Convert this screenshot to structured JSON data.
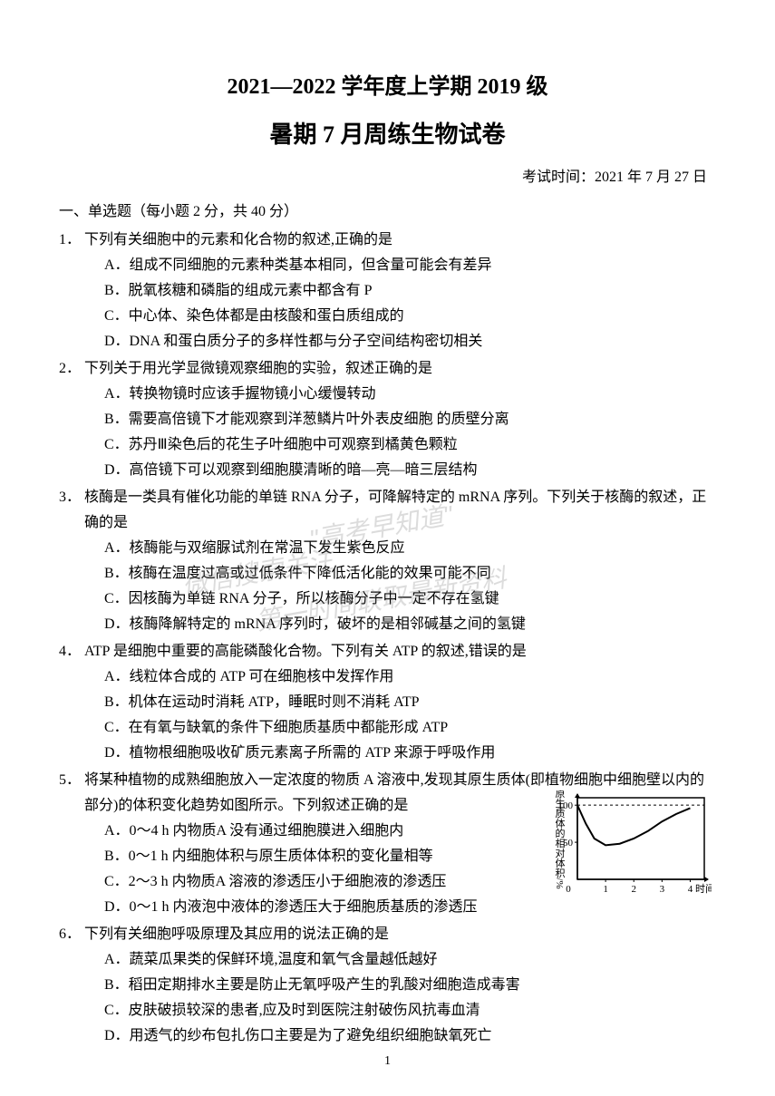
{
  "header": {
    "title_main": "2021—2022 学年度上学期 2019 级",
    "title_sub": "暑期 7 月周练生物试卷",
    "exam_date": "考试时间：2021 年 7 月 27 日"
  },
  "section1": {
    "header": "一、单选题（每小题 2 分，共 40 分）"
  },
  "questions": {
    "q1": {
      "num": "1．",
      "stem": "下列有关细胞中的元素和化合物的叙述,正确的是",
      "A": "A．组成不同细胞的元素种类基本相同，但含量可能会有差异",
      "B": "B．脱氧核糖和磷脂的组成元素中都含有 P",
      "C": "C．中心体、染色体都是由核酸和蛋白质组成的",
      "D": "D．DNA 和蛋白质分子的多样性都与分子空间结构密切相关"
    },
    "q2": {
      "num": "2．",
      "stem": "下列关于用光学显微镜观察细胞的实验，叙述正确的是",
      "A": "A．转换物镜时应该手握物镜小心缓慢转动",
      "B": "B．需要高倍镜下才能观察到洋葱鳞片叶外表皮细胞 的质壁分离",
      "C": "C．苏丹Ⅲ染色后的花生子叶细胞中可观察到橘黄色颗粒",
      "D": "D．高倍镜下可以观察到细胞膜清晰的暗—亮—暗三层结构"
    },
    "q3": {
      "num": "3．",
      "stem": "核酶是一类具有催化功能的单链 RNA 分子，可降解特定的 mRNA 序列。下列关于核酶的叙述，正确的是",
      "A": "A．核酶能与双缩脲试剂在常温下发生紫色反应",
      "B": "B．核酶在温度过高或过低条件下降低活化能的效果可能不同",
      "C": "C．因核酶为单链 RNA 分子，所以核酶分子中一定不存在氢键",
      "D": "D．核酶降解特定的 mRNA 序列时，破坏的是相邻碱基之间的氢键"
    },
    "q4": {
      "num": "4．",
      "stem": "ATP 是细胞中重要的高能磷酸化合物。下列有关 ATP 的叙述,错误的是",
      "A": "A．线粒体合成的 ATP 可在细胞核中发挥作用",
      "B": "B．机体在运动时消耗 ATP，睡眠时则不消耗 ATP",
      "C": "C．在有氧与缺氧的条件下细胞质基质中都能形成 ATP",
      "D": "D．植物根细胞吸收矿质元素离子所需的 ATP 来源于呼吸作用"
    },
    "q5": {
      "num": "5．",
      "stem": "将某种植物的成熟细胞放入一定浓度的物质 A 溶液中,发现其原生质体(即植物细胞中细胞壁以内的部分)的体积变化趋势如图所示。下列叙述正确的是",
      "A": "A．0～4 h 内物质A 没有通过细胞膜进入细胞内",
      "B": "B．0～1 h 内细胞体积与原生质体体积的变化量相等",
      "C": "C．2～3 h 内物质A 溶液的渗透压小于细胞液的渗透压",
      "D": "D．0～1 h 内液泡中液体的渗透压大于细胞质基质的渗透压"
    },
    "q6": {
      "num": "6．",
      "stem": "下列有关细胞呼吸原理及其应用的说法正确的是",
      "A": "A．蔬菜瓜果类的保鲜环境,温度和氧气含量越低越好",
      "B": "B．稻田定期排水主要是防止无氧呼吸产生的乳酸对细胞造成毒害",
      "C": "C．皮肤破损较深的患者,应及时到医院注射破伤风抗毒血清",
      "D": "D．用透气的纱布包扎伤口主要是为了避免组织细胞缺氧死亡"
    }
  },
  "chart": {
    "type": "line",
    "xlabel": "时间/h",
    "ylabel": "原生质体的相对体积/%",
    "xlim": [
      0,
      4.5
    ],
    "ylim": [
      0,
      110
    ],
    "xticks": [
      0,
      1,
      2,
      3,
      4
    ],
    "yticks": [
      50,
      100
    ],
    "dashed_line_y": 100,
    "curve_points": [
      [
        0,
        100
      ],
      [
        0.3,
        75
      ],
      [
        0.6,
        55
      ],
      [
        1,
        46
      ],
      [
        1.5,
        48
      ],
      [
        2,
        55
      ],
      [
        2.5,
        65
      ],
      [
        3,
        78
      ],
      [
        3.5,
        88
      ],
      [
        4,
        96
      ]
    ],
    "line_color": "#000000",
    "axis_color": "#000000",
    "background_color": "#ffffff",
    "font_size": 11
  },
  "watermark": {
    "line1": "\"高考早知道\"",
    "line2": "微信搜索关注",
    "line3": "第一时间联取最新资料"
  },
  "page_number": "1"
}
